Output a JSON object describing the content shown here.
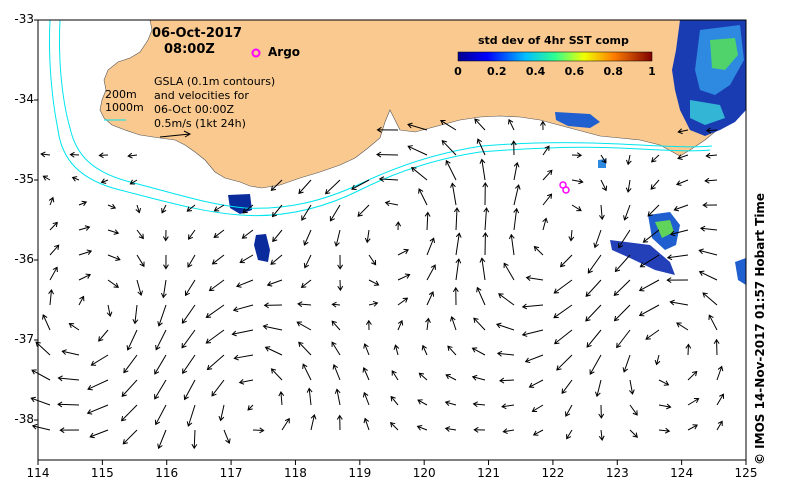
{
  "title": {
    "date": "06-Oct-2017",
    "time": "08:00Z"
  },
  "argo": {
    "label": "Argo",
    "color": "#ff00ff"
  },
  "colorbar": {
    "title": "std dev of 4hr SST comp",
    "ticks": [
      "0",
      "0.2",
      "0.4",
      "0.6",
      "0.8",
      "1"
    ],
    "range": [
      0,
      1
    ]
  },
  "contours": {
    "shallow_label": "200m",
    "deep_label": "1000m",
    "color": "#00e5ee"
  },
  "info": {
    "line1": "GSLA (0.1m contours)",
    "line2": "and velocities for",
    "line3": "06-Oct 00:00Z",
    "line4": "0.5m/s (1kt 24h)"
  },
  "credit": "©  IMOS 14-Nov-2017 01:57 Hobart Time",
  "axes": {
    "x_ticks": [
      "114",
      "115",
      "116",
      "117",
      "118",
      "119",
      "120",
      "121",
      "122",
      "123",
      "124",
      "125"
    ],
    "y_ticks": [
      "-33",
      "-34",
      "-35",
      "-36",
      "-37",
      "-38"
    ],
    "lon_range": [
      114,
      125
    ],
    "lat_range": [
      -33,
      -38.5
    ]
  },
  "land_color": "#f9c98f"
}
